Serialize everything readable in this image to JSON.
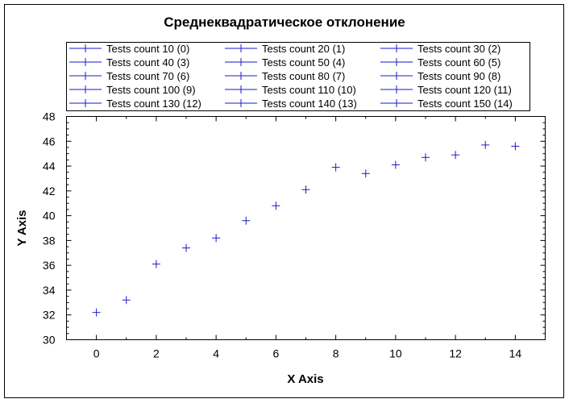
{
  "chart_data": {
    "type": "scatter",
    "title": "Среднеквадратическое отклонение",
    "xlabel": "X Axis",
    "ylabel": "Y Axis",
    "xlim": [
      -1,
      15
    ],
    "ylim": [
      30,
      48
    ],
    "x_ticks": [
      0,
      2,
      4,
      6,
      8,
      10,
      12,
      14
    ],
    "y_ticks": [
      30,
      32,
      34,
      36,
      38,
      40,
      42,
      44,
      46,
      48
    ],
    "grid": false,
    "legend_position": "top",
    "marker_color": "#1a1acc",
    "series": [
      {
        "name": "Tests count 10 (0)",
        "x": 0,
        "y": 32.2
      },
      {
        "name": "Tests count 20 (1)",
        "x": 1,
        "y": 33.2
      },
      {
        "name": "Tests count 30 (2)",
        "x": 2,
        "y": 36.1
      },
      {
        "name": "Tests count 40 (3)",
        "x": 3,
        "y": 37.4
      },
      {
        "name": "Tests count 50 (4)",
        "x": 4,
        "y": 38.2
      },
      {
        "name": "Tests count 60 (5)",
        "x": 5,
        "y": 39.6
      },
      {
        "name": "Tests count 70 (6)",
        "x": 6,
        "y": 40.8
      },
      {
        "name": "Tests count 80 (7)",
        "x": 7,
        "y": 42.1
      },
      {
        "name": "Tests count 90 (8)",
        "x": 8,
        "y": 43.9
      },
      {
        "name": "Tests count 100 (9)",
        "x": 9,
        "y": 43.4
      },
      {
        "name": "Tests count 110 (10)",
        "x": 10,
        "y": 44.1
      },
      {
        "name": "Tests count 120 (11)",
        "x": 11,
        "y": 44.7
      },
      {
        "name": "Tests count 130 (12)",
        "x": 12,
        "y": 44.9
      },
      {
        "name": "Tests count 140 (13)",
        "x": 13,
        "y": 45.7
      },
      {
        "name": "Tests count 150 (14)",
        "x": 14,
        "y": 45.6
      }
    ]
  }
}
